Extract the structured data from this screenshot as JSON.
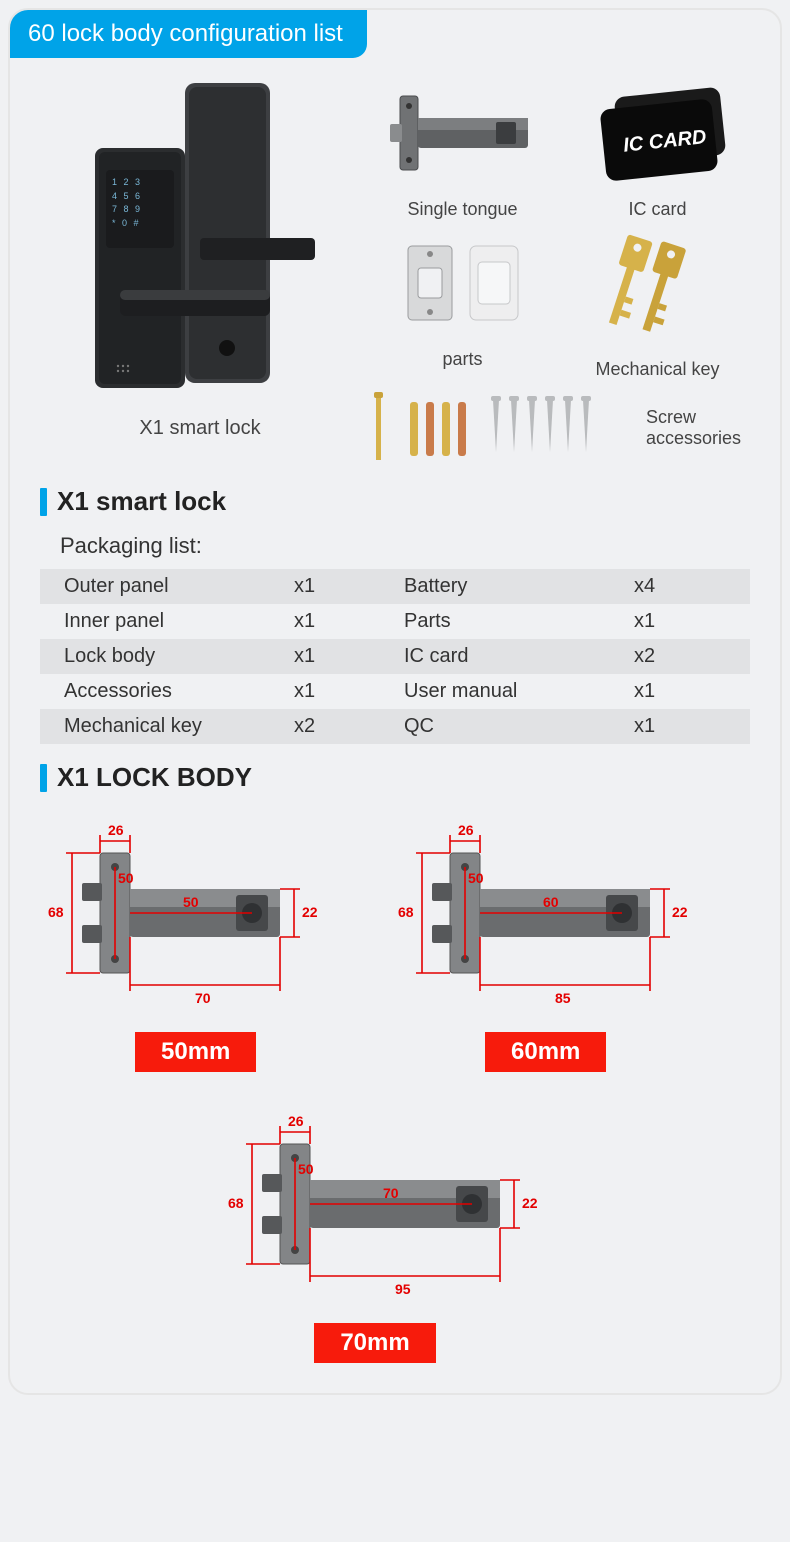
{
  "colors": {
    "title_bg": "#00a3e8",
    "accent": "#00a3e8",
    "size_tag_bg": "#f71b0c",
    "row_alt_bg": "#e1e2e4",
    "dim_line": "#e30000",
    "lock_body": "#35373a",
    "lock_body_light": "#5a5d60",
    "key_gold": "#d6b24a",
    "iccard_bg": "#111111"
  },
  "title": "60 lock body configuration list",
  "main_product": {
    "caption": "X1 smart lock",
    "keypad_rows": [
      "1  2  3",
      "4  5  6",
      "7  8  9",
      "*  0  #"
    ]
  },
  "accessories": {
    "single_tongue": "Single tongue",
    "ic_card": "IC card",
    "ic_card_text": "IC CARD",
    "parts": "parts",
    "mechanical_key": "Mechanical key",
    "screw_accessories": "Screw accessories"
  },
  "section1": {
    "heading": "X1 smart lock",
    "sub": "Packaging list:"
  },
  "packaging": [
    {
      "l": "Outer panel",
      "lq": "x1",
      "r": "Battery",
      "rq": "x4"
    },
    {
      "l": "Inner panel",
      "lq": "x1",
      "r": "Parts",
      "rq": "x1"
    },
    {
      "l": "Lock body",
      "lq": "x1",
      "r": "IC card",
      "rq": "x2"
    },
    {
      "l": "Accessories",
      "lq": "x1",
      "r": "User manual",
      "rq": "x1"
    },
    {
      "l": "Mechanical key",
      "lq": "x2",
      "r": "QC",
      "rq": "x1"
    }
  ],
  "section2": {
    "heading": "X1 LOCK BODY"
  },
  "lock_bodies": [
    {
      "size_label": "50mm",
      "dims": {
        "plate_w": "26",
        "plate_h": "68",
        "hole_gap": "50",
        "backset": "50",
        "body_h": "22",
        "body_l": "70"
      }
    },
    {
      "size_label": "60mm",
      "dims": {
        "plate_w": "26",
        "plate_h": "68",
        "hole_gap": "50",
        "backset": "60",
        "body_h": "22",
        "body_l": "85"
      }
    },
    {
      "size_label": "70mm",
      "dims": {
        "plate_w": "26",
        "plate_h": "68",
        "hole_gap": "50",
        "backset": "70",
        "body_h": "22",
        "body_l": "95"
      }
    }
  ]
}
